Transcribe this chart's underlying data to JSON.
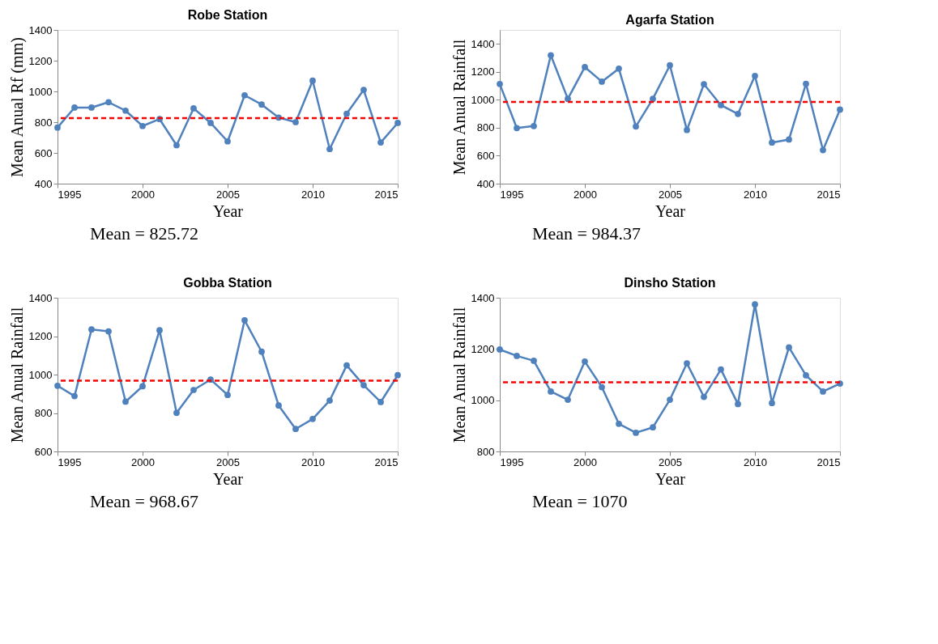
{
  "chart_data": [
    {
      "type": "line",
      "title": "Robe Station",
      "xlabel": "Year",
      "ylabel": "Mean Anual Rf (mm)",
      "x": [
        1995,
        1996,
        1997,
        1998,
        1999,
        2000,
        2001,
        2002,
        2003,
        2004,
        2005,
        2006,
        2007,
        2008,
        2009,
        2010,
        2011,
        2012,
        2013,
        2014,
        2015
      ],
      "series": [
        {
          "color": "#4f81bd",
          "values": [
            765,
            895,
            895,
            930,
            875,
            775,
            820,
            650,
            890,
            795,
            675,
            975,
            915,
            830,
            800,
            1070,
            625,
            855,
            1010,
            668,
            795
          ]
        }
      ],
      "xlim": [
        1995,
        2015
      ],
      "xticks": [
        1995,
        2000,
        2005,
        2010,
        2015
      ],
      "ylim": [
        400,
        1400
      ],
      "yticks": [
        400,
        600,
        800,
        1000,
        1200,
        1400
      ],
      "grid": false,
      "legend": false,
      "marker": "circle",
      "line_style": "solid",
      "ref_lines": [
        {
          "axis": "y",
          "value": 825.72,
          "color": "#ff0000",
          "line_style": "dashed"
        }
      ],
      "annotations": [
        "Mean = 825.72"
      ]
    },
    {
      "type": "line",
      "title": "Agarfa Station",
      "xlabel": "Year",
      "ylabel": "Mean Anual Rainfall",
      "x": [
        1995,
        1996,
        1997,
        1998,
        1999,
        2000,
        2001,
        2002,
        2003,
        2004,
        2005,
        2006,
        2007,
        2008,
        2009,
        2010,
        2011,
        2012,
        2013,
        2014,
        2015
      ],
      "series": [
        {
          "color": "#4f81bd",
          "values": [
            1113,
            798,
            812,
            1319,
            1007,
            1234,
            1130,
            1223,
            809,
            1007,
            1247,
            784,
            1112,
            962,
            899,
            1171,
            694,
            716,
            1115,
            640,
            930
          ]
        }
      ],
      "xlim": [
        1995,
        2015
      ],
      "xticks": [
        1995,
        2000,
        2005,
        2010,
        2015
      ],
      "ylim": [
        400,
        1500
      ],
      "yticks": [
        400,
        600,
        800,
        1000,
        1200,
        1400
      ],
      "grid": false,
      "legend": false,
      "marker": "circle",
      "line_style": "solid",
      "ref_lines": [
        {
          "axis": "y",
          "value": 984.37,
          "color": "#ff0000",
          "line_style": "dashed"
        }
      ],
      "annotations": [
        "Mean = 984.37"
      ]
    },
    {
      "type": "line",
      "title": "Gobba Station",
      "xlabel": "Year",
      "ylabel": "Mean Anual Rainfall",
      "x": [
        1995,
        1996,
        1997,
        1998,
        1999,
        2000,
        2001,
        2002,
        2003,
        2004,
        2005,
        2006,
        2007,
        2008,
        2009,
        2010,
        2011,
        2012,
        2013,
        2014,
        2015
      ],
      "series": [
        {
          "color": "#4f81bd",
          "values": [
            942,
            888,
            1235,
            1225,
            859,
            939,
            1231,
            801,
            920,
            974,
            894,
            1283,
            1119,
            839,
            717,
            769,
            865,
            1048,
            945,
            857,
            997
          ]
        }
      ],
      "xlim": [
        1995,
        2015
      ],
      "xticks": [
        1995,
        2000,
        2005,
        2010,
        2015
      ],
      "ylim": [
        600,
        1400
      ],
      "yticks": [
        600,
        800,
        1000,
        1200,
        1400
      ],
      "grid": false,
      "legend": false,
      "marker": "circle",
      "line_style": "solid",
      "ref_lines": [
        {
          "axis": "y",
          "value": 968.67,
          "color": "#ff0000",
          "line_style": "dashed"
        }
      ],
      "annotations": [
        "Mean = 968.67"
      ]
    },
    {
      "type": "line",
      "title": "Dinsho Station",
      "xlabel": "Year",
      "ylabel": "Mean Anual Rainfall",
      "x": [
        1995,
        1996,
        1997,
        1998,
        1999,
        2000,
        2001,
        2002,
        2003,
        2004,
        2005,
        2006,
        2007,
        2008,
        2009,
        2010,
        2011,
        2012,
        2013,
        2014,
        2015
      ],
      "series": [
        {
          "color": "#4f81bd",
          "values": [
            1198,
            1173,
            1154,
            1034,
            1002,
            1151,
            1051,
            908,
            873,
            894,
            1002,
            1144,
            1013,
            1120,
            985,
            1374,
            989,
            1206,
            1097,
            1034,
            1065
          ]
        }
      ],
      "xlim": [
        1995,
        2015
      ],
      "xticks": [
        1995,
        2000,
        2005,
        2010,
        2015
      ],
      "ylim": [
        800,
        1400
      ],
      "yticks": [
        800,
        1000,
        1200,
        1400
      ],
      "grid": false,
      "legend": false,
      "marker": "circle",
      "line_style": "solid",
      "ref_lines": [
        {
          "axis": "y",
          "value": 1070,
          "color": "#ff0000",
          "line_style": "dashed"
        }
      ],
      "annotations": [
        "Mean = 1070"
      ]
    }
  ]
}
